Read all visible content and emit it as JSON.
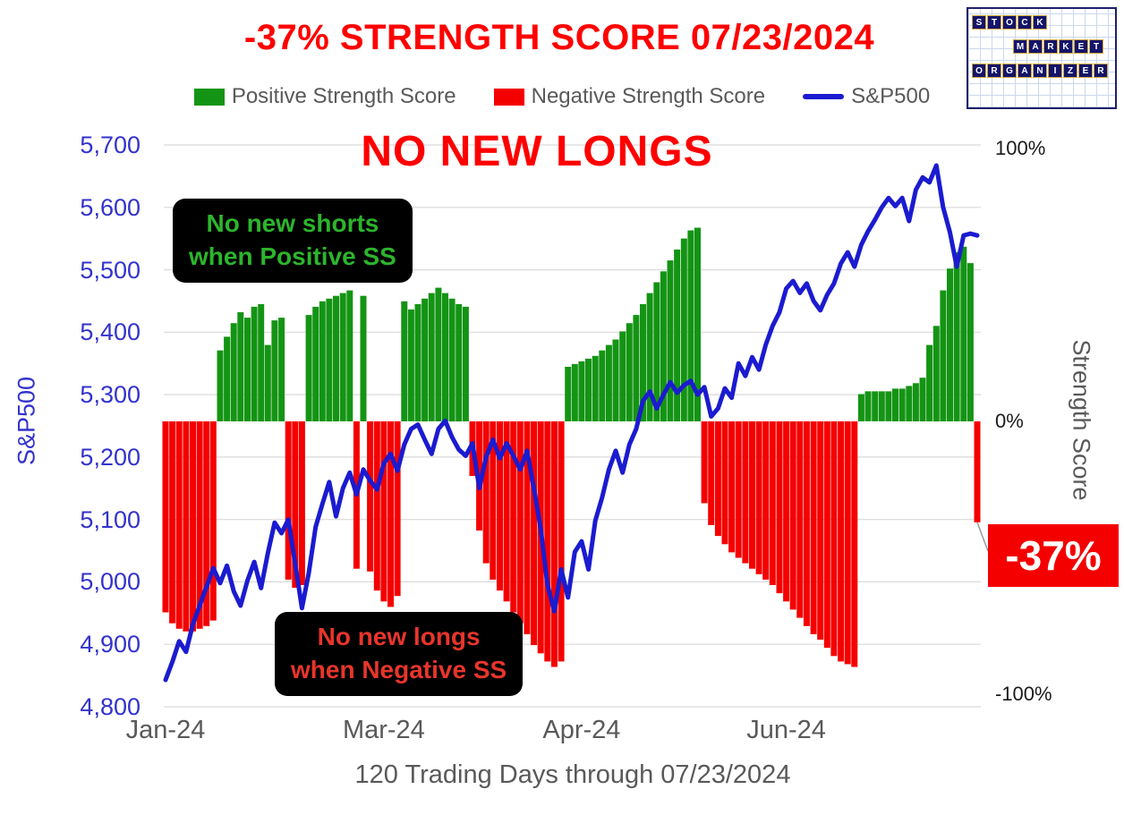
{
  "title": "-37% STRENGTH SCORE 07/23/2024",
  "logo": {
    "rows": [
      "STOCK",
      "MARKET",
      "ORGANIZER"
    ]
  },
  "legend": {
    "items": [
      {
        "label": "Positive Strength Score",
        "color": "#149414",
        "swatch": "rect"
      },
      {
        "label": "Negative Strength Score",
        "color": "#f40000",
        "swatch": "rect"
      },
      {
        "label": "S&P500",
        "color": "#1b1bd0",
        "swatch": "line"
      }
    ]
  },
  "annotations": {
    "banner": "NO NEW LONGS",
    "shorts_note": {
      "line1": "No new shorts",
      "line2": "when Positive SS"
    },
    "longs_note": {
      "line1": "No new longs",
      "line2": "when Negative SS"
    },
    "score_callout": "-37%"
  },
  "colors": {
    "title_red": "#fe0000",
    "bar_green": "#149414",
    "bar_red": "#f40000",
    "line_blue": "#1b1bd0",
    "left_axis_blue": "#3333cc",
    "gray_text": "#595959",
    "note_green": "#2cb52c",
    "note_red": "#e8352b",
    "gridline": "#d9d9d9"
  },
  "chart_data": {
    "type": "bar+line combo",
    "n_points": 120,
    "title": "-37% STRENGTH SCORE 07/23/2024",
    "x_axis": {
      "title": "120 Trading Days through 07/23/2024",
      "ticks": [
        {
          "label": "Jan-24",
          "day": 0
        },
        {
          "label": "Mar-24",
          "day": 32
        },
        {
          "label": "Apr-24",
          "day": 61
        },
        {
          "label": "Jun-24",
          "day": 91
        }
      ]
    },
    "left_axis": {
      "title": "S&P500",
      "min": 4800,
      "max": 5700,
      "tick_step": 100,
      "tick_values": [
        5700,
        5600,
        5500,
        5400,
        5300,
        5200,
        5100,
        5000,
        4900,
        4800
      ],
      "tick_labels": [
        "5,700",
        "5,600",
        "5,500",
        "5,400",
        "5,300",
        "5,200",
        "5,100",
        "5,000",
        "4,900",
        "4,800"
      ]
    },
    "right_axis": {
      "title": "Strength Score",
      "min_pct": -100,
      "max_pct": 100,
      "ticks": [
        {
          "label": "100%",
          "pct": 100
        },
        {
          "label": "0%",
          "pct": 0
        },
        {
          "label": "-100%",
          "pct": -100
        }
      ]
    },
    "latest_strength_score_pct": -37,
    "series": [
      {
        "name": "Strength Score",
        "type": "bar",
        "axis": "right",
        "unit": "%",
        "positive_color": "#149414",
        "negative_color": "#f40000",
        "values": [
          -70,
          -74,
          -76,
          -77,
          -77,
          -76,
          -75,
          -73,
          26,
          31,
          36,
          40,
          38,
          42,
          43,
          28,
          37,
          38,
          -58,
          -61,
          -60,
          39,
          42,
          44,
          45,
          46,
          47,
          48,
          -54,
          46,
          -55,
          -62,
          -66,
          -68,
          -64,
          44,
          41,
          43,
          45,
          47,
          49,
          47,
          45,
          43,
          42,
          -20,
          -40,
          -52,
          -58,
          -62,
          -66,
          -70,
          -74,
          -78,
          -82,
          -85,
          -88,
          -90,
          -88,
          20,
          21,
          22,
          23,
          24,
          26,
          28,
          30,
          33,
          36,
          39,
          43,
          47,
          51,
          55,
          59,
          63,
          67,
          70,
          71,
          -30,
          -38,
          -42,
          -45,
          -48,
          -50,
          -52,
          -54,
          -56,
          -58,
          -60,
          -63,
          -66,
          -69,
          -72,
          -75,
          -78,
          -80,
          -83,
          -86,
          -88,
          -89,
          -90,
          10,
          11,
          11,
          11,
          11,
          12,
          12,
          13,
          14,
          16,
          28,
          35,
          48,
          56,
          62,
          64,
          58,
          -37
        ]
      },
      {
        "name": "S&P500",
        "type": "line",
        "axis": "left",
        "color": "#1b1bd0",
        "values": [
          4843,
          4872,
          4905,
          4888,
          4932,
          4962,
          4992,
          5022,
          4998,
          5026,
          4985,
          4962,
          5002,
          5032,
          4990,
          5046,
          5095,
          5078,
          5100,
          5030,
          4958,
          5015,
          5088,
          5125,
          5160,
          5105,
          5150,
          5175,
          5140,
          5180,
          5162,
          5148,
          5190,
          5205,
          5178,
          5220,
          5245,
          5252,
          5228,
          5205,
          5245,
          5258,
          5232,
          5212,
          5202,
          5222,
          5150,
          5200,
          5228,
          5198,
          5222,
          5202,
          5180,
          5210,
          5150,
          5085,
          4995,
          4953,
          5020,
          4975,
          5048,
          5065,
          5020,
          5098,
          5135,
          5180,
          5210,
          5175,
          5220,
          5245,
          5290,
          5305,
          5278,
          5300,
          5320,
          5303,
          5315,
          5322,
          5300,
          5312,
          5265,
          5278,
          5310,
          5295,
          5350,
          5330,
          5360,
          5340,
          5380,
          5410,
          5432,
          5470,
          5482,
          5463,
          5478,
          5450,
          5435,
          5460,
          5478,
          5510,
          5528,
          5505,
          5540,
          5562,
          5580,
          5600,
          5615,
          5602,
          5615,
          5578,
          5628,
          5648,
          5640,
          5667,
          5600,
          5560,
          5505,
          5555,
          5558,
          5555
        ]
      }
    ]
  }
}
